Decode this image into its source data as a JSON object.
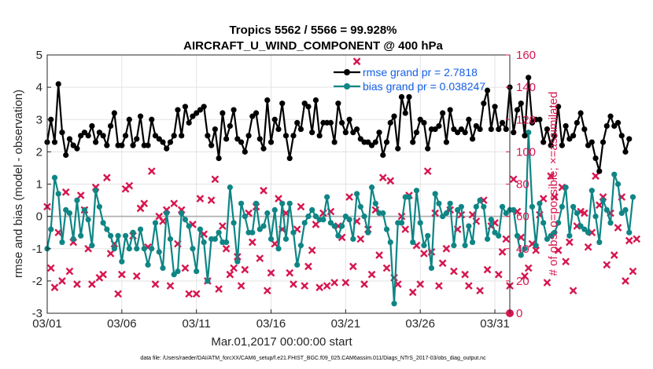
{
  "chart_data": {
    "type": "line",
    "title": "Tropics 5562 / 5566 = 99.928%",
    "subtitle": "AIRCRAFT_U_WIND_COMPONENT @ 400 hPa",
    "xlabel": "Mar.01,2017 00:00:00 start",
    "ylabel_left": "rmse and bias (model - observation)",
    "ylabel_right": "# of obs: o=possible; ×=assimilated",
    "footer": "data file: /Users/raeder/DAI/ATM_forcXX/CAM6_setup/f.e21.FHIST_BGC.f09_025.CAM6assim.011/Diags_NTrS_2017-03/obs_diag_output.nc",
    "xlim": [
      1,
      32
    ],
    "ylim_left": [
      -3,
      5
    ],
    "ylim_right": [
      0,
      160
    ],
    "xticks": [
      1,
      6,
      11,
      16,
      21,
      26,
      31
    ],
    "xtick_labels": [
      "03/01",
      "03/06",
      "03/11",
      "03/16",
      "03/21",
      "03/26",
      "03/31"
    ],
    "yticks_left": [
      "-3",
      "-2",
      "-1",
      "0",
      "1",
      "2",
      "3",
      "4",
      "5"
    ],
    "yticks_right": [
      "0",
      "20",
      "40",
      "60",
      "80",
      "100",
      "120",
      "140",
      "160"
    ],
    "grid": true,
    "legend_position": "top-right",
    "colors": {
      "rmse": "#000000",
      "bias": "#0f8585",
      "obs": "#d6174f",
      "right_axis": "#d6174f",
      "legend_text": "#1560e8",
      "zero_line": "#b0b0b0"
    },
    "series": [
      {
        "name": "rmse grand pr = 2.7818",
        "axis": "left",
        "x_start": 1.0,
        "x_step": 0.25,
        "values": [
          2.3,
          3.0,
          2.3,
          4.1,
          2.6,
          1.9,
          2.4,
          2.2,
          2.1,
          2.5,
          2.6,
          2.5,
          2.8,
          2.3,
          2.6,
          2.5,
          2.2,
          2.8,
          3.2,
          2.2,
          2.2,
          2.5,
          3.0,
          2.2,
          2.4,
          3.1,
          2.2,
          2.2,
          3.0,
          2.5,
          2.4,
          2.3,
          2.1,
          2.3,
          2.5,
          3.3,
          2.5,
          3.4,
          2.9,
          3.1,
          3.2,
          3.3,
          3.4,
          2.5,
          2.2,
          2.7,
          1.8,
          3.2,
          2.4,
          2.8,
          3.3,
          2.4,
          2.3,
          2.0,
          2.5,
          3.1,
          3.2,
          2.4,
          2.1,
          3.6,
          2.3,
          3.0,
          2.7,
          3.5,
          2.5,
          1.8,
          2.5,
          2.9,
          2.7,
          3.5,
          3.4,
          2.6,
          3.6,
          2.5,
          2.9,
          2.9,
          2.9,
          2.3,
          3.5,
          2.9,
          2.6,
          3.0,
          2.6,
          2.7,
          2.4,
          2.3,
          2.3,
          2.2,
          2.3,
          2.6,
          1.9,
          2.3,
          2.9,
          3.1,
          2.1,
          3.7,
          3.2,
          3.7,
          2.3,
          2.6,
          3.0,
          2.9,
          2.1,
          2.7,
          2.7,
          2.8,
          3.2,
          2.3,
          3.3,
          2.7,
          2.6,
          2.7,
          2.6,
          3.0,
          2.4,
          2.8,
          2.7,
          3.5,
          3.9,
          2.7,
          3.4,
          2.7,
          2.9,
          2.7,
          4.0,
          2.6,
          3.3,
          3.5,
          2.5,
          4.3,
          2.9,
          3.0,
          3.0,
          2.3,
          2.7,
          2.2,
          2.5,
          3.4,
          2.2,
          2.8,
          2.4,
          2.5,
          2.9,
          3.2,
          2.7,
          2.2,
          2.3,
          1.8,
          1.4,
          2.3,
          2.8,
          3.1,
          2.8,
          2.9,
          2.5,
          2.0,
          2.4
        ]
      },
      {
        "name": "bias grand pr = 0.038247",
        "axis": "left",
        "x_start": 1.0,
        "x_step": 0.25,
        "values": [
          -1.0,
          -0.4,
          1.2,
          0.7,
          -0.8,
          0.2,
          0.1,
          -0.7,
          0.5,
          -0.6,
          0.2,
          -0.1,
          -0.9,
          0.8,
          0.3,
          -0.2,
          -0.4,
          -0.6,
          -1.0,
          -0.6,
          -1.4,
          -0.6,
          -1.0,
          -0.5,
          -1.0,
          -0.4,
          -1.0,
          -1.5,
          -1.0,
          -0.2,
          -1.1,
          -1.6,
          0.1,
          -0.7,
          -1.8,
          -1.7,
          0.1,
          -0.1,
          -0.3,
          -1.0,
          -1.7,
          -0.4,
          -0.8,
          -2.0,
          -0.7,
          -0.7,
          -0.5,
          -0.8,
          -0.8,
          0.9,
          -0.2,
          -1.4,
          0.4,
          0.0,
          -0.5,
          -0.5,
          0.4,
          -0.4,
          -0.3,
          0.1,
          -0.7,
          0.2,
          -1.0,
          0.4,
          -0.7,
          0.4,
          -0.5,
          -1.5,
          -0.9,
          -0.2,
          0.0,
          0.2,
          0.0,
          -0.1,
          -0.1,
          0.6,
          -0.2,
          -0.3,
          -0.6,
          -0.3,
          0.0,
          -0.1,
          -0.7,
          0.7,
          0.3,
          0.0,
          -0.5,
          0.9,
          0.4,
          0.1,
          0.1,
          -0.4,
          -0.8,
          -2.7,
          -0.2,
          -0.2,
          0.6,
          0.6,
          -0.8,
          0.8,
          -0.2,
          -0.9,
          -0.6,
          -1.6,
          0.7,
          0.4,
          0.0,
          0.1,
          0.4,
          -0.9,
          0.2,
          0.3,
          -0.9,
          -0.3,
          -0.8,
          0.3,
          0.5,
          0.3,
          -0.7,
          -0.1,
          -0.5,
          -0.6,
          0.3,
          0.1,
          0.2,
          0.2,
          -0.6,
          -1.2,
          -1.0,
          2.6,
          0.3,
          -0.9,
          0.4,
          -0.2,
          -0.7,
          -0.6,
          -0.5,
          -0.2,
          0.3,
          0.9,
          -0.6,
          0.3,
          0.1,
          -0.3,
          -0.4,
          -0.5,
          0.8,
          0.0,
          -0.8,
          0.5,
          0.2,
          -0.2,
          1.3,
          1.0,
          0.1,
          0.2,
          -0.5,
          0.6
        ]
      },
      {
        "name": "obs assimilated",
        "axis": "right",
        "marker": "x",
        "x_start": 1.0,
        "x_step": 0.25,
        "values": [
          66,
          28,
          16,
          50,
          20,
          75,
          26,
          44,
          18,
          73,
          64,
          40,
          18,
          78,
          22,
          24,
          84,
          37,
          43,
          12,
          24,
          77,
          79,
          48,
          23,
          65,
          68,
          41,
          88,
          18,
          60,
          57,
          64,
          17,
          68,
          43,
          64,
          28,
          12,
          55,
          12,
          71,
          49,
          20,
          70,
          83,
          15,
          54,
          40,
          24,
          28,
          35,
          17,
          27,
          62,
          44,
          66,
          34,
          76,
          14,
          25,
          43,
          71,
          52,
          62,
          25,
          18,
          52,
          66,
          17,
          29,
          39,
          55,
          16,
          62,
          17,
          63,
          19,
          54,
          47,
          19,
          72,
          29,
          57,
          46,
          18,
          52,
          24,
          64,
          36,
          84,
          28,
          82,
          22,
          18,
          60,
          52,
          73,
          13,
          42,
          18,
          37,
          88,
          38,
          62,
          17,
          31,
          40,
          64,
          26,
          52,
          61,
          24,
          17,
          61,
          57,
          14,
          70,
          27,
          54,
          56,
          24,
          38,
          46,
          17,
          83,
          63,
          47,
          23,
          28,
          43,
          39,
          61,
          71,
          19,
          85,
          72,
          39,
          78,
          32,
          44,
          14,
          54,
          63,
          62,
          41,
          50,
          85,
          67,
          72,
          30,
          62,
          36,
          53,
          72,
          20,
          45,
          26,
          46
        ]
      }
    ],
    "outlier_marks": [
      {
        "series": "obs assimilated",
        "x": 21.75,
        "value": 156
      },
      {
        "series": "obs assimilated",
        "x": 32.0,
        "value": 0
      }
    ]
  }
}
